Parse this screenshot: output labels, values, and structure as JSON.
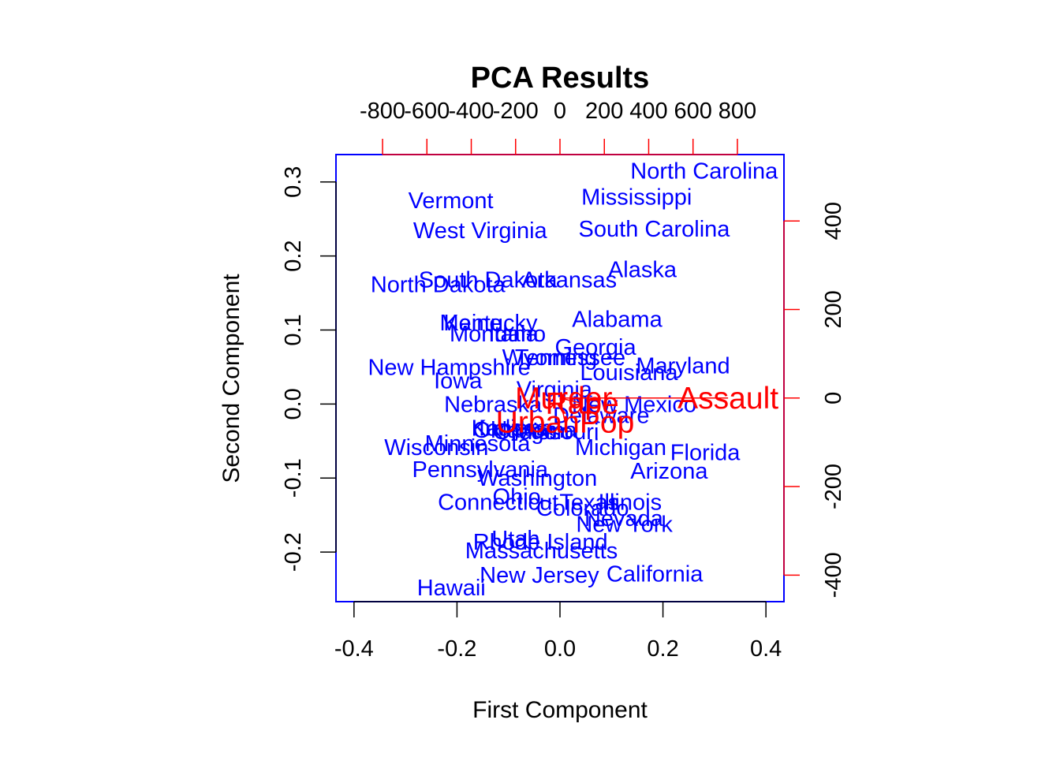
{
  "chart_data": {
    "type": "scatter",
    "title": "PCA Results",
    "xlabel": "First Component",
    "ylabel": "Second Component",
    "xlim": [
      -0.435,
      0.435
    ],
    "ylim": [
      -0.267,
      0.337
    ],
    "xticks": [
      "-0.4",
      "-0.2",
      "0.0",
      "0.2",
      "0.4"
    ],
    "yticks": [
      "-0.2",
      "-0.1",
      "0.0",
      "0.1",
      "0.2",
      "0.3"
    ],
    "top_axis": {
      "lim": [
        -1010,
        1010
      ],
      "ticks": [
        "-800",
        "-600",
        "-400",
        "-200",
        "0",
        "200",
        "400",
        "600",
        "800"
      ],
      "tick_values": [
        -800,
        -600,
        -400,
        -200,
        0,
        200,
        400,
        600,
        800
      ],
      "color": "#ff0000"
    },
    "right_axis": {
      "lim": [
        -460,
        550
      ],
      "ticks": [
        "-400",
        "-200",
        "0",
        "200",
        "400"
      ],
      "tick_values": [
        -400,
        -200,
        0,
        200,
        400
      ],
      "color": "#ff0000"
    },
    "colors": {
      "points": "#0000ff",
      "loadings": "#ff0000",
      "box": "#0000ff"
    },
    "points": [
      {
        "label": "North Carolina",
        "x": 0.28,
        "y": 0.315
      },
      {
        "label": "Mississippi",
        "x": 0.149,
        "y": 0.28
      },
      {
        "label": "Vermont",
        "x": -0.212,
        "y": 0.275
      },
      {
        "label": "South Carolina",
        "x": 0.183,
        "y": 0.237
      },
      {
        "label": "West Virginia",
        "x": -0.155,
        "y": 0.235
      },
      {
        "label": "Alaska",
        "x": 0.16,
        "y": 0.182
      },
      {
        "label": "Arkansas",
        "x": 0.018,
        "y": 0.168
      },
      {
        "label": "South Dakota",
        "x": -0.14,
        "y": 0.168
      },
      {
        "label": "North Dakota",
        "x": -0.237,
        "y": 0.162
      },
      {
        "label": "Alabama",
        "x": 0.111,
        "y": 0.115
      },
      {
        "label": "Maine",
        "x": -0.173,
        "y": 0.11
      },
      {
        "label": "Kentucky",
        "x": -0.135,
        "y": 0.11
      },
      {
        "label": "Montana",
        "x": -0.128,
        "y": 0.095
      },
      {
        "label": "Idaho",
        "x": -0.083,
        "y": 0.095
      },
      {
        "label": "Georgia",
        "x": 0.069,
        "y": 0.077
      },
      {
        "label": "Wyoming",
        "x": -0.02,
        "y": 0.063
      },
      {
        "label": "Tennessee",
        "x": 0.02,
        "y": 0.063
      },
      {
        "label": "Maryland",
        "x": 0.239,
        "y": 0.052
      },
      {
        "label": "New Hampshire",
        "x": -0.215,
        "y": 0.05
      },
      {
        "label": "Louisiana",
        "x": 0.134,
        "y": 0.043
      },
      {
        "label": "Iowa",
        "x": -0.198,
        "y": 0.032
      },
      {
        "label": "Virginia",
        "x": -0.011,
        "y": 0.02
      },
      {
        "label": "Nebraska",
        "x": -0.13,
        "y": 0.0
      },
      {
        "label": "New Mexico",
        "x": 0.144,
        "y": 0.0
      },
      {
        "label": "Delaware",
        "x": 0.08,
        "y": -0.015
      },
      {
        "label": "Kansas",
        "x": -0.098,
        "y": -0.032
      },
      {
        "label": "Indiana",
        "x": -0.085,
        "y": -0.032
      },
      {
        "label": "Oklahoma",
        "x": -0.068,
        "y": -0.035
      },
      {
        "label": "Oregon",
        "x": -0.056,
        "y": -0.037
      },
      {
        "label": "Missouri",
        "x": -0.007,
        "y": -0.037
      },
      {
        "label": "Minnesota",
        "x": -0.16,
        "y": -0.053
      },
      {
        "label": "Wisconsin",
        "x": -0.24,
        "y": -0.058
      },
      {
        "label": "Michigan",
        "x": 0.118,
        "y": -0.058
      },
      {
        "label": "Florida",
        "x": 0.282,
        "y": -0.065
      },
      {
        "label": "Pennsylvania",
        "x": -0.155,
        "y": -0.088
      },
      {
        "label": "Arizona",
        "x": 0.212,
        "y": -0.09
      },
      {
        "label": "Washington",
        "x": -0.044,
        "y": -0.1
      },
      {
        "label": "Ohio",
        "x": -0.084,
        "y": -0.125
      },
      {
        "label": "Connecticut",
        "x": -0.12,
        "y": -0.132
      },
      {
        "label": "Texas",
        "x": 0.057,
        "y": -0.132
      },
      {
        "label": "Illinois",
        "x": 0.136,
        "y": -0.132
      },
      {
        "label": "Colorado",
        "x": 0.044,
        "y": -0.14
      },
      {
        "label": "Nevada",
        "x": 0.124,
        "y": -0.154
      },
      {
        "label": "New York",
        "x": 0.125,
        "y": -0.162
      },
      {
        "label": "Utah",
        "x": -0.086,
        "y": -0.182
      },
      {
        "label": "Rhode Island",
        "x": -0.038,
        "y": -0.186
      },
      {
        "label": "Massachusetts",
        "x": -0.036,
        "y": -0.198
      },
      {
        "label": "New Jersey",
        "x": -0.04,
        "y": -0.231
      },
      {
        "label": "California",
        "x": 0.184,
        "y": -0.229
      },
      {
        "label": "Hawaii",
        "x": -0.211,
        "y": -0.248
      }
    ],
    "loadings": [
      {
        "label": "Murder",
        "x": 17,
        "y": 0
      },
      {
        "label": "Assault",
        "x": 758,
        "y": 0
      },
      {
        "label": "Rape",
        "x": 100,
        "y": -12
      },
      {
        "label": "UrbanPop",
        "x": 23,
        "y": -55
      }
    ]
  }
}
